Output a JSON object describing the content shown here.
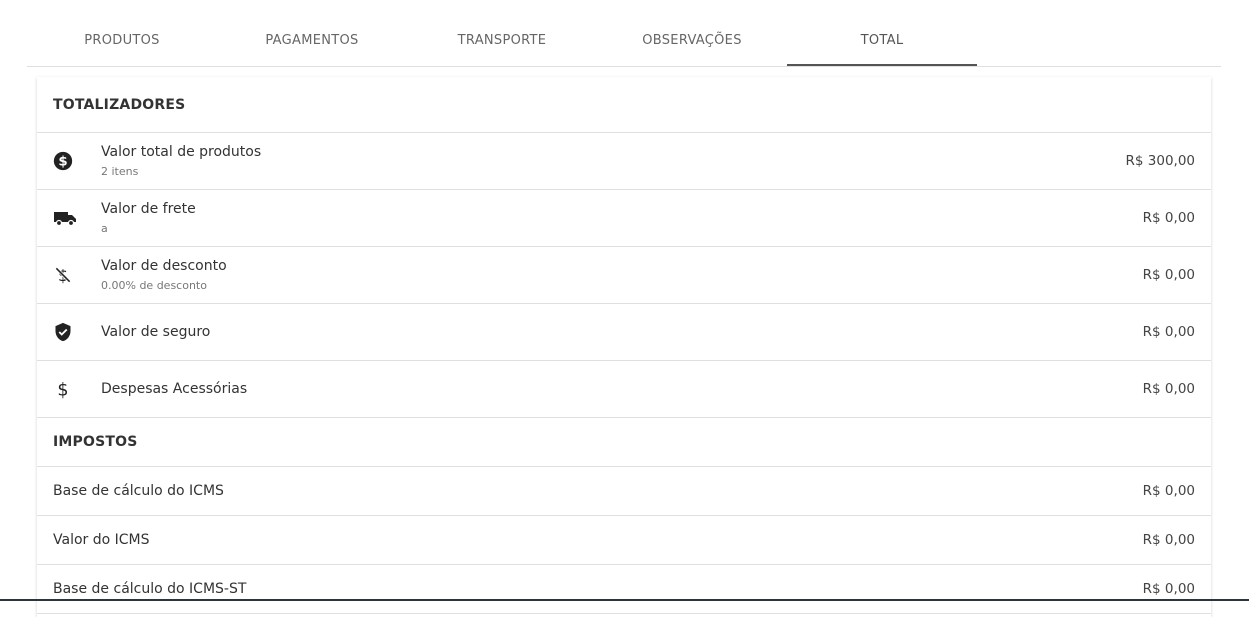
{
  "tabs": [
    {
      "label": "PRODUTOS"
    },
    {
      "label": "PAGAMENTOS"
    },
    {
      "label": "TRANSPORTE"
    },
    {
      "label": "OBSERVAÇÕES"
    },
    {
      "label": "TOTAL",
      "active": true
    }
  ],
  "totalizadores": {
    "title": "TOTALIZADORES",
    "items": [
      {
        "icon": "dollar-circle-icon",
        "label": "Valor total de produtos",
        "sub": "2 itens",
        "value": "R$ 300,00"
      },
      {
        "icon": "truck-icon",
        "label": "Valor de frete",
        "sub": "a",
        "value": "R$ 0,00"
      },
      {
        "icon": "money-off-icon",
        "label": "Valor de desconto",
        "sub": "0.00% de desconto",
        "value": "R$ 0,00"
      },
      {
        "icon": "shield-check-icon",
        "label": "Valor de seguro",
        "value": "R$ 0,00"
      },
      {
        "icon": "dollar-icon",
        "label": "Despesas Acessórias",
        "value": "R$ 0,00"
      }
    ]
  },
  "impostos": {
    "title": "IMPOSTOS",
    "items": [
      {
        "label": "Base de cálculo do ICMS",
        "value": "R$ 0,00"
      },
      {
        "label": "Valor do ICMS",
        "value": "R$ 0,00"
      },
      {
        "label": "Base de cálculo do ICMS-ST",
        "value": "R$ 0,00"
      }
    ]
  }
}
